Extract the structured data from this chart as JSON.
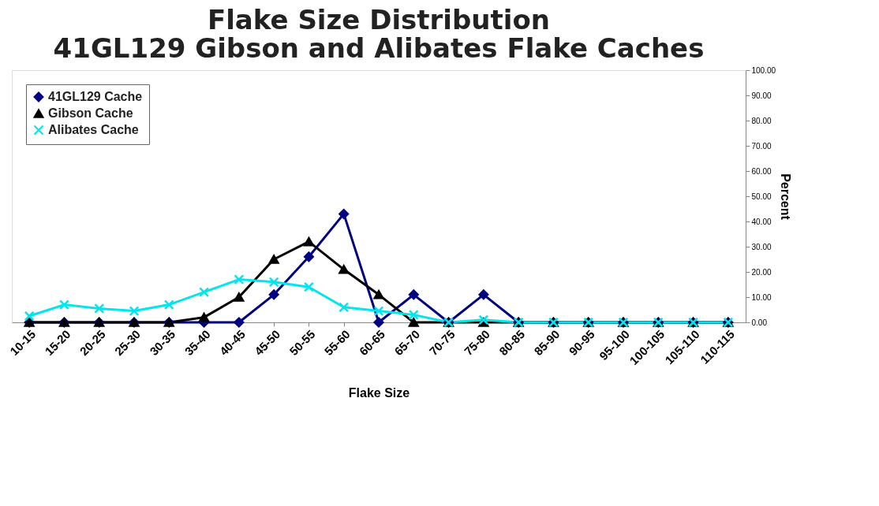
{
  "chart_data": {
    "type": "line",
    "title": [
      "Flake Size Distribution",
      "41GL129 Gibson and Alibates Flake Caches"
    ],
    "xlabel": "Flake Size",
    "ylabel": "Percent",
    "categories": [
      "10-15",
      "15-20",
      "20-25",
      "25-30",
      "30-35",
      "35-40",
      "40-45",
      "45-50",
      "50-55",
      "55-60",
      "60-65",
      "65-70",
      "70-75",
      "75-80",
      "80-85",
      "85-90",
      "90-95",
      "95-100",
      "100-105",
      "105-110",
      "110-115"
    ],
    "series": [
      {
        "name": "41GL129 Cache",
        "color": "#000080",
        "marker": "diamond",
        "values": [
          0,
          0,
          0,
          0,
          0,
          0,
          0,
          11,
          26,
          43,
          0,
          11,
          0,
          11,
          0,
          0,
          0,
          0,
          0,
          0,
          0
        ]
      },
      {
        "name": "Gibson Cache",
        "color": "#000000",
        "marker": "triangle",
        "values": [
          0,
          0,
          0,
          0,
          0,
          2,
          10,
          25,
          32,
          21,
          11,
          0,
          0,
          0,
          0,
          0,
          0,
          0,
          0,
          0,
          0
        ]
      },
      {
        "name": "Alibates Cache",
        "color": "#00e5ee",
        "marker": "cross",
        "values": [
          2.5,
          7,
          5.5,
          4.5,
          7,
          12,
          17,
          16,
          14,
          6,
          4.5,
          3,
          0,
          1,
          0,
          0,
          0,
          0,
          0,
          0,
          0
        ]
      }
    ],
    "ylim": [
      0,
      100
    ],
    "yticks": [
      {
        "value": 0,
        "label": "0.00"
      },
      {
        "value": 10,
        "label": "10.00"
      },
      {
        "value": 20,
        "label": "20.00"
      },
      {
        "value": 30,
        "label": "30.00"
      },
      {
        "value": 40,
        "label": "40.00"
      },
      {
        "value": 50,
        "label": "50.00"
      },
      {
        "value": 60,
        "label": "60.00"
      },
      {
        "value": 70,
        "label": "70.00"
      },
      {
        "value": 80,
        "label": "80.00"
      },
      {
        "value": 90,
        "label": "90.00"
      },
      {
        "value": 100,
        "label": "100.00"
      }
    ],
    "grid": false,
    "legend": "top left",
    "line_style": "solid"
  }
}
